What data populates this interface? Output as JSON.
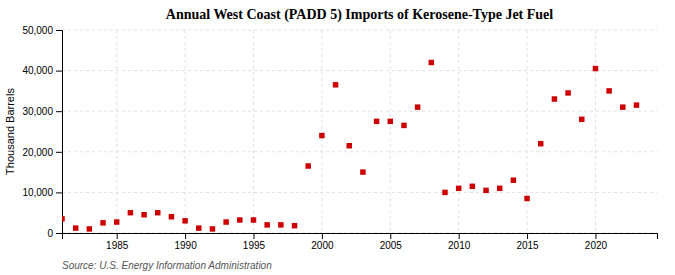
{
  "chart_data": {
    "type": "scatter",
    "title": "Annual West Coast (PADD 5) Imports of Kerosene-Type Jet Fuel",
    "ylabel": "Thousand Barrels",
    "annotations": [
      "Source: U.S. Energy Information Administration"
    ],
    "color": "#cc0000",
    "marker": "square",
    "x": [
      1981,
      1982,
      1983,
      1984,
      1985,
      1986,
      1987,
      1988,
      1989,
      1990,
      1991,
      1992,
      1993,
      1994,
      1995,
      1996,
      1997,
      1998,
      1999,
      2000,
      2001,
      2002,
      2003,
      2004,
      2005,
      2006,
      2007,
      2008,
      2009,
      2010,
      2011,
      2012,
      2013,
      2014,
      2015,
      2016,
      2017,
      2018,
      2019,
      2020,
      2021,
      2022,
      2023
    ],
    "values": [
      3500,
      1200,
      1000,
      2500,
      2700,
      5000,
      4500,
      5000,
      4000,
      3000,
      1200,
      1000,
      2700,
      3200,
      3200,
      2000,
      2000,
      1800,
      16500,
      24000,
      36500,
      21500,
      15000,
      27500,
      27500,
      26500,
      31000,
      42000,
      10000,
      11000,
      11500,
      10500,
      11000,
      13000,
      8500,
      22000,
      33000,
      34500,
      28000,
      40500,
      35000,
      31000,
      31500
    ],
    "xlim": [
      1981,
      2024.5
    ],
    "ylim": [
      0,
      50000
    ],
    "xticks": [
      1985,
      1990,
      1995,
      2000,
      2005,
      2010,
      2015,
      2020
    ],
    "yticks": [
      0,
      {
        "value": 10000,
        "label": "10,000"
      },
      {
        "value": 20000,
        "label": "20,000"
      },
      {
        "value": 30000,
        "label": "30,000"
      },
      {
        "value": 40000,
        "label": "40,000"
      },
      {
        "value": 50000,
        "label": "50,000"
      }
    ],
    "grid": true
  }
}
